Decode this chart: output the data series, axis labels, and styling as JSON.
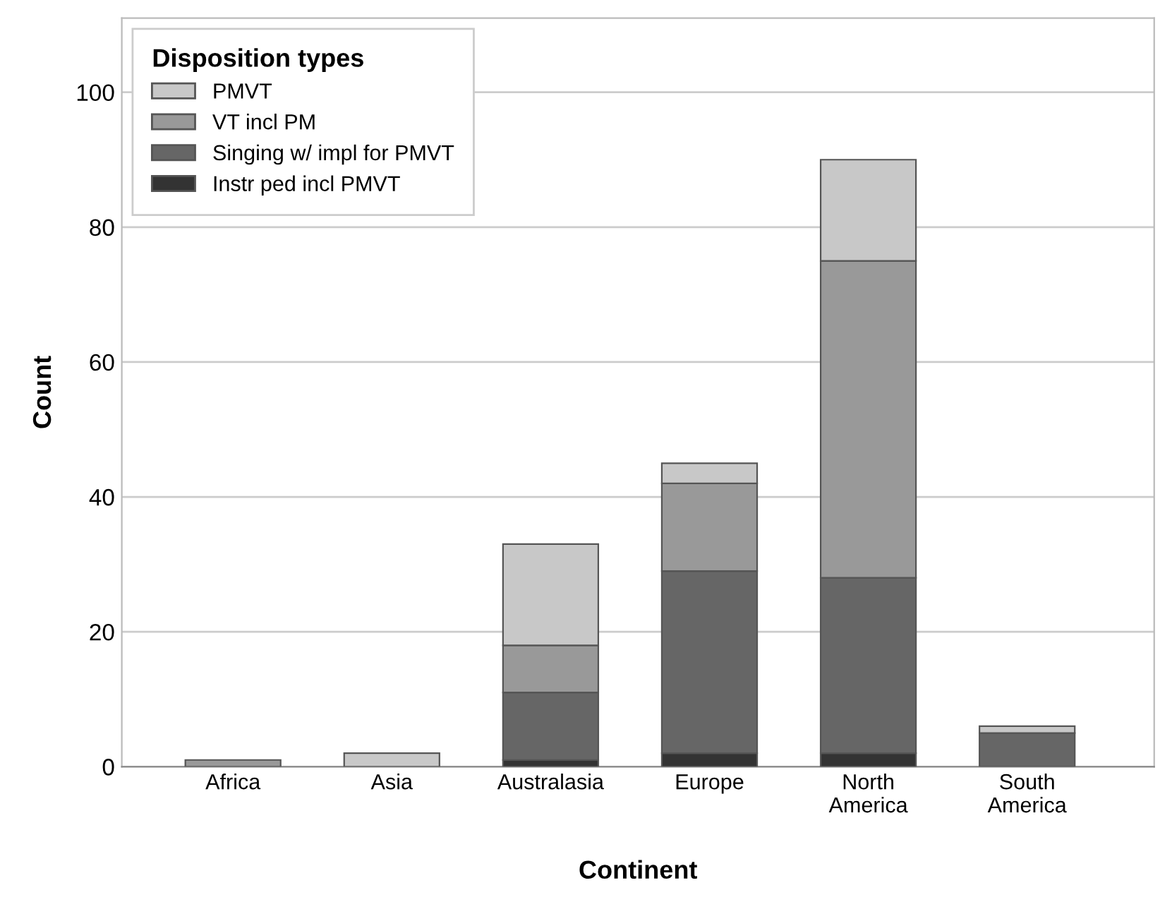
{
  "chart_data": {
    "type": "bar",
    "stacked": true,
    "xlabel": "Continent",
    "ylabel": "Count",
    "legend_title": "Disposition types",
    "categories": [
      "Africa",
      "Asia",
      "Australasia",
      "Europe",
      "North America",
      "South America"
    ],
    "series": [
      {
        "name": "Instr ped incl PMVT",
        "color": "#333333",
        "values": [
          0,
          0,
          1,
          2,
          2,
          0
        ]
      },
      {
        "name": "Singing w/ impl for PMVT",
        "color": "#666666",
        "values": [
          0,
          0,
          10,
          27,
          26,
          5
        ]
      },
      {
        "name": "VT incl PM",
        "color": "#999999",
        "values": [
          1,
          0,
          7,
          13,
          47,
          0
        ]
      },
      {
        "name": "PMVT",
        "color": "#c8c8c8",
        "values": [
          0,
          2,
          15,
          3,
          15,
          1
        ]
      }
    ],
    "ylim": [
      0,
      111
    ],
    "yticks": [
      0,
      20,
      40,
      60,
      80,
      100
    ],
    "grid": "y",
    "legend": "top left"
  }
}
